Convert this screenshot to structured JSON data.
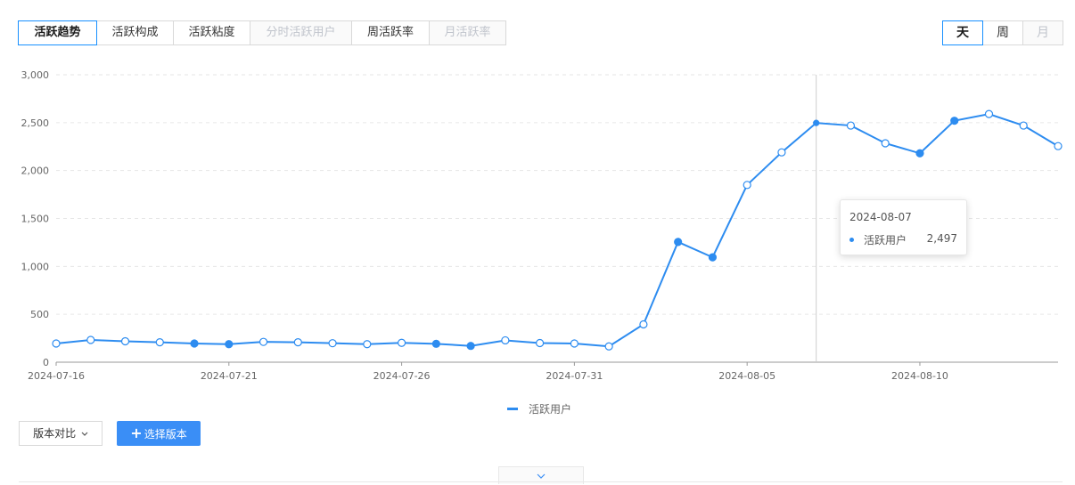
{
  "tabs": [
    {
      "label": "活跃趋势",
      "state": "active"
    },
    {
      "label": "活跃构成",
      "state": "normal"
    },
    {
      "label": "活跃粘度",
      "state": "normal"
    },
    {
      "label": "分时活跃用户",
      "state": "disabled"
    },
    {
      "label": "周活跃率",
      "state": "normal"
    },
    {
      "label": "月活跃率",
      "state": "disabled"
    }
  ],
  "period_tabs": [
    {
      "label": "天",
      "state": "active"
    },
    {
      "label": "周",
      "state": "normal"
    },
    {
      "label": "月",
      "state": "disabled"
    }
  ],
  "chart_data": {
    "type": "line",
    "x": [
      "2024-07-16",
      "2024-07-17",
      "2024-07-18",
      "2024-07-19",
      "2024-07-20",
      "2024-07-21",
      "2024-07-22",
      "2024-07-23",
      "2024-07-24",
      "2024-07-25",
      "2024-07-26",
      "2024-07-27",
      "2024-07-28",
      "2024-07-29",
      "2024-07-30",
      "2024-07-31",
      "2024-08-01",
      "2024-08-02",
      "2024-08-03",
      "2024-08-04",
      "2024-08-05",
      "2024-08-06",
      "2024-08-07",
      "2024-08-08",
      "2024-08-09",
      "2024-08-10",
      "2024-08-11",
      "2024-08-12",
      "2024-08-13",
      "2024-08-14"
    ],
    "x_tick_labels": [
      "2024-07-16",
      "2024-07-21",
      "2024-07-26",
      "2024-07-31",
      "2024-08-05",
      "2024-08-10"
    ],
    "y_tick_labels": [
      "0",
      "500",
      "1,000",
      "1,500",
      "2,000",
      "2,500",
      "3,000"
    ],
    "ylim": [
      0,
      3000
    ],
    "series": [
      {
        "name": "活跃用户",
        "color": "#2d8cf0",
        "values": [
          195,
          232,
          218,
          208,
          195,
          188,
          212,
          208,
          198,
          188,
          202,
          192,
          170,
          228,
          200,
          195,
          165,
          395,
          1255,
          1095,
          1850,
          2190,
          2497,
          2470,
          2285,
          2180,
          2520,
          2590,
          2470,
          2255
        ],
        "filled_markers": [
          4,
          5,
          11,
          12,
          18,
          19,
          22,
          25,
          26
        ]
      }
    ],
    "grid": true,
    "legend": "bottom",
    "tooltip": {
      "date": "2024-08-07",
      "series": "活跃用户",
      "value": "2,497",
      "index": 22
    }
  },
  "buttons": {
    "compare": "版本对比",
    "compare_icon": "chevron-down-icon",
    "select": "选择版本",
    "select_icon": "plus-icon",
    "expand_icon": "chevron-down-icon"
  }
}
